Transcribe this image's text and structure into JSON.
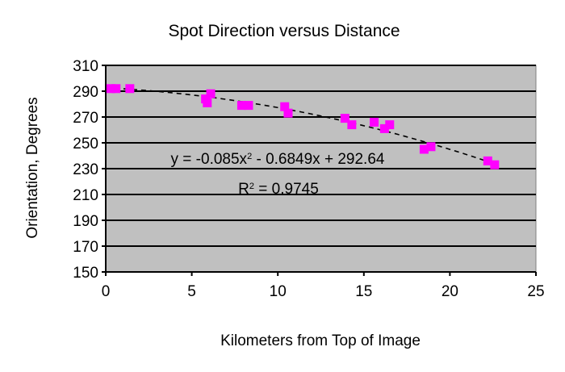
{
  "chart_data": {
    "type": "scatter",
    "title": "Spot Direction versus Distance",
    "xlabel": "Kilometers from Top of Image",
    "ylabel": "Orientation, Degrees",
    "xlim": [
      0,
      25
    ],
    "ylim": [
      150,
      310
    ],
    "xticks": [
      0,
      5,
      10,
      15,
      20,
      25
    ],
    "yticks": [
      150,
      170,
      190,
      210,
      230,
      250,
      270,
      290,
      310
    ],
    "grid": true,
    "plot_background": "#c0c0c0",
    "point_color": "#ff00ff",
    "series": [
      {
        "points": [
          [
            0.3,
            292
          ],
          [
            0.6,
            292
          ],
          [
            1.4,
            292
          ],
          [
            5.8,
            284
          ],
          [
            5.9,
            281
          ],
          [
            6.1,
            288
          ],
          [
            7.9,
            279
          ],
          [
            8.3,
            279
          ],
          [
            10.4,
            278
          ],
          [
            10.6,
            273
          ],
          [
            13.9,
            269
          ],
          [
            14.3,
            264
          ],
          [
            15.6,
            266
          ],
          [
            16.2,
            261
          ],
          [
            16.5,
            264
          ],
          [
            18.5,
            245
          ],
          [
            18.9,
            247
          ],
          [
            22.2,
            236
          ],
          [
            22.6,
            233
          ]
        ]
      }
    ],
    "trendline": {
      "type": "polynomial",
      "coefficients": [
        -0.085,
        -0.6849,
        292.64
      ],
      "x_range": [
        0,
        22.6
      ],
      "style": "dashed",
      "equation_label": "y = -0.085x",
      "equation_sup": "2",
      "equation_rest": " - 0.6849x + 292.64",
      "r2_label": "R",
      "r2_sup": "2",
      "r2_rest": " = 0.9745"
    }
  }
}
